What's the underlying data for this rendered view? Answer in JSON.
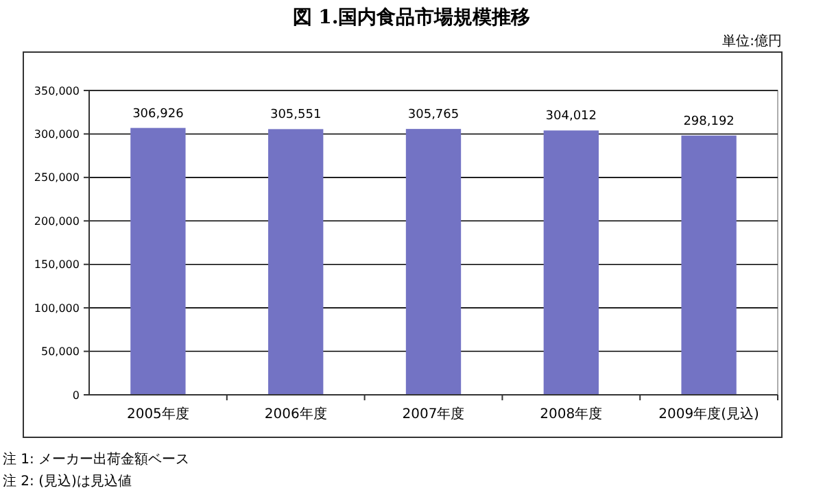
{
  "chart_data": {
    "type": "bar",
    "title": "図 1.国内食品市場規模推移",
    "categories": [
      "2005年度",
      "2006年度",
      "2007年度",
      "2008年度",
      "2009年度(見込)"
    ],
    "values": [
      306926,
      305551,
      305765,
      304012,
      298192
    ],
    "color": "#7373c4",
    "ylim": [
      0,
      350000
    ],
    "yticks": [
      {
        "value": 0,
        "label": "0"
      },
      {
        "value": 50000,
        "label": "50,000"
      },
      {
        "value": 100000,
        "label": "100,000"
      },
      {
        "value": 150000,
        "label": "150,000"
      },
      {
        "value": 200000,
        "label": "200,000"
      },
      {
        "value": 250000,
        "label": "250,000"
      },
      {
        "value": 300000,
        "label": "300,000"
      },
      {
        "value": 350000,
        "label": "350,000"
      }
    ],
    "grid": "y",
    "value_labels": [
      "306,926",
      "305,551",
      "305,765",
      "304,012",
      "298,192"
    ],
    "annotations": [
      "単位:億円",
      "注 1: メーカー出荷金額ベース",
      "注 2: (見込)は見込値"
    ]
  }
}
